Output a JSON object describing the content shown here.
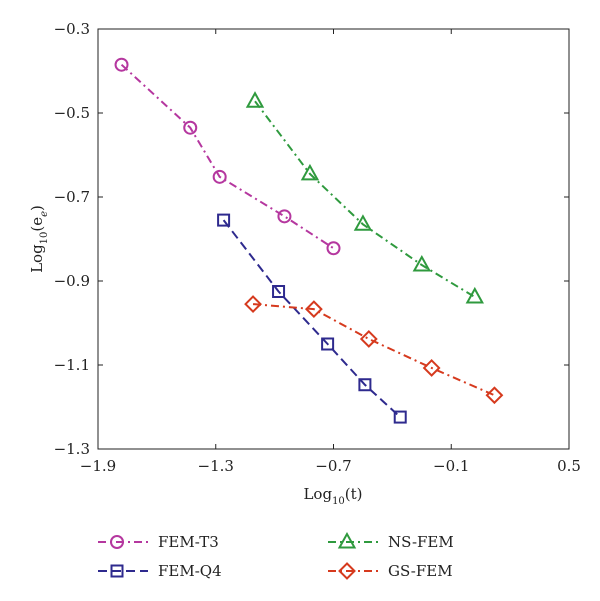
{
  "chart_data": {
    "type": "line",
    "xlabel_base": "Log",
    "xlabel_sub": "10",
    "xlabel_arg": "(t)",
    "ylabel_base": "Log",
    "ylabel_sub": "10",
    "ylabel_arg_open": "(e",
    "ylabel_arg_sub": "e",
    "ylabel_arg_close": ")",
    "xlim": [
      -1.9,
      0.5
    ],
    "ylim": [
      -1.3,
      -0.3
    ],
    "xticks": [
      -1.9,
      -1.3,
      -0.7,
      -0.1,
      0.5
    ],
    "xtick_labels": [
      "−1.9",
      "−1.3",
      "−0.7",
      "−0.1",
      "0.5"
    ],
    "yticks": [
      -1.3,
      -1.1,
      -0.9,
      -0.7,
      -0.5,
      -0.3
    ],
    "ytick_labels": [
      "−1.3",
      "−1.1",
      "−0.9",
      "−0.7",
      "−0.5",
      "−0.3"
    ],
    "grid": false,
    "legend_position": "bottom",
    "series": [
      {
        "name": "FEM-T3",
        "marker": "circle",
        "color": "#b5379f",
        "dash": "dashdot",
        "x": [
          -1.78,
          -1.43,
          -1.28,
          -0.95,
          -0.7
        ],
        "y": [
          -0.385,
          -0.535,
          -0.652,
          -0.746,
          -0.822
        ]
      },
      {
        "name": "FEM-Q4",
        "marker": "square",
        "color": "#2e2a8e",
        "dash": "dash",
        "x": [
          -1.26,
          -0.98,
          -0.73,
          -0.54,
          -0.36
        ],
        "y": [
          -0.755,
          -0.925,
          -1.05,
          -1.147,
          -1.224
        ]
      },
      {
        "name": "NS-FEM",
        "marker": "triangle",
        "color": "#2f9a3e",
        "dash": "dashdot",
        "x": [
          -1.1,
          -0.82,
          -0.55,
          -0.25,
          0.02
        ],
        "y": [
          -0.472,
          -0.645,
          -0.765,
          -0.862,
          -0.938
        ]
      },
      {
        "name": "GS-FEM",
        "marker": "diamond",
        "color": "#d63a1e",
        "dash": "dashdot",
        "x": [
          -1.11,
          -0.8,
          -0.52,
          -0.2,
          0.12
        ],
        "y": [
          -0.955,
          -0.967,
          -1.038,
          -1.107,
          -1.172
        ]
      }
    ]
  }
}
